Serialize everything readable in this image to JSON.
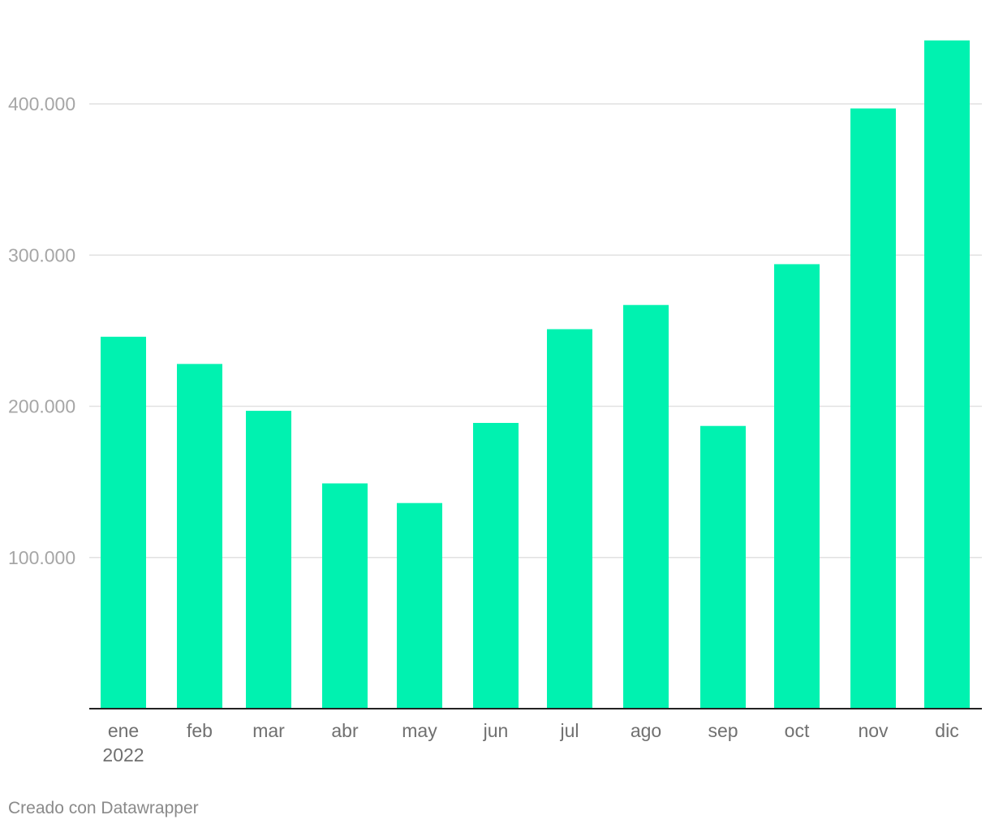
{
  "chart_data": {
    "type": "bar",
    "categories": [
      "ene",
      "feb",
      "mar",
      "abr",
      "may",
      "jun",
      "jul",
      "ago",
      "sep",
      "oct",
      "nov",
      "dic"
    ],
    "year_label": "2022",
    "values": [
      246000,
      228000,
      197000,
      149000,
      136000,
      189000,
      251000,
      267000,
      187000,
      294000,
      397000,
      442000
    ],
    "ylim": [
      0,
      400000
    ],
    "yticks": [
      100000,
      200000,
      300000,
      400000
    ],
    "ytick_labels": [
      "100.000",
      "200.000",
      "300.000",
      "400.000"
    ],
    "title": "",
    "xlabel": "",
    "ylabel": "",
    "grid": true,
    "bar_color": "#00f2b0"
  },
  "footer": {
    "credit": "Creado con Datawrapper"
  }
}
